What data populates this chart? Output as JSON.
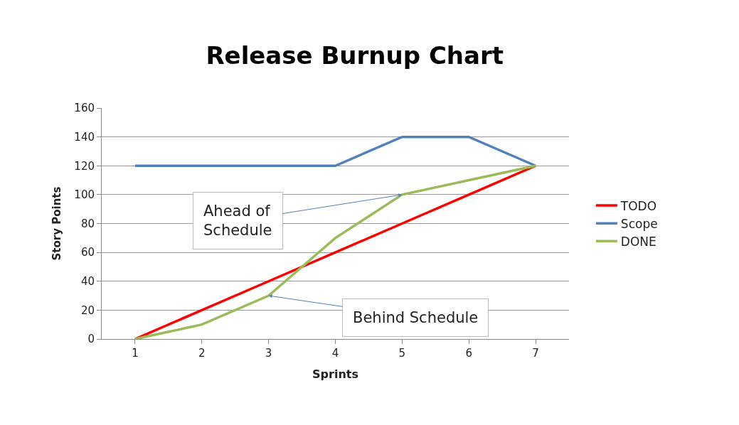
{
  "chart_data": {
    "type": "line",
    "title": "Release Burnup Chart",
    "xlabel": "Sprints",
    "ylabel": "Story Points",
    "categories": [
      "1",
      "2",
      "3",
      "4",
      "5",
      "6",
      "7"
    ],
    "series": [
      {
        "name": "TODO",
        "color": "#ff0000",
        "values": [
          0,
          20,
          40,
          60,
          80,
          100,
          120
        ]
      },
      {
        "name": "Scope",
        "color": "#4f81bd",
        "values": [
          120,
          120,
          120,
          120,
          140,
          140,
          120
        ]
      },
      {
        "name": "DONE",
        "color": "#9bbb59",
        "values": [
          0,
          10,
          30,
          70,
          100,
          110,
          120
        ]
      }
    ],
    "ylim": [
      0,
      160
    ],
    "yticks": [
      0,
      20,
      40,
      60,
      80,
      100,
      120,
      140,
      160
    ],
    "grid": "y",
    "legend": "right",
    "marker": "none",
    "line_style": "solid",
    "annotations": [
      {
        "text": "Ahead of\nSchedule",
        "x": "5",
        "y": 100
      },
      {
        "text": "Behind Schedule",
        "x": "3",
        "y": 30
      }
    ]
  }
}
